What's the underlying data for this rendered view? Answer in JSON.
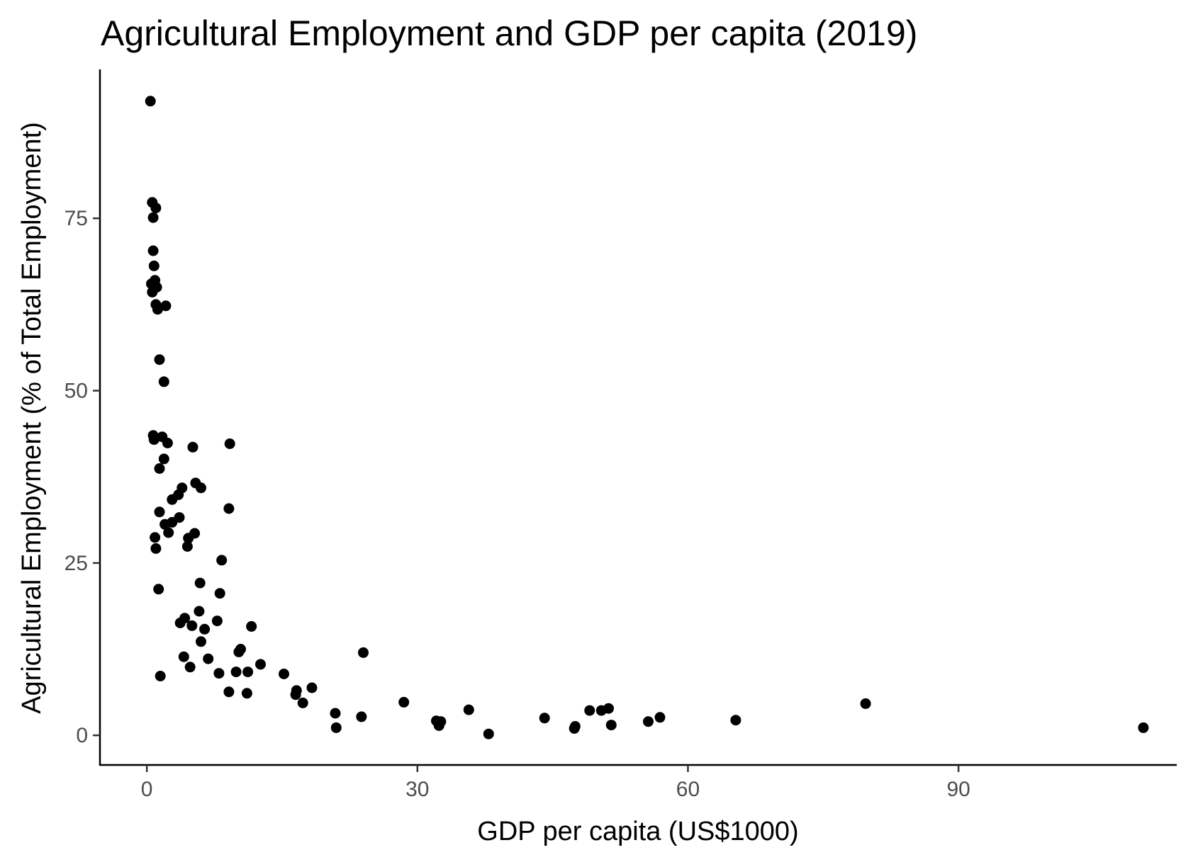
{
  "colors": {
    "background": "#ffffff",
    "point": "#000000",
    "axis": "#000000",
    "tick_label": "#4d4d4d"
  },
  "chart_data": {
    "type": "scatter",
    "title": "Agricultural Employment and GDP per capita (2019)",
    "xlabel": "GDP per capita (US$1000)",
    "ylabel": "Agricultural Employment (% of Total Employment)",
    "xlim": [
      -5.2,
      114.2
    ],
    "ylim": [
      -4.3,
      96.6
    ],
    "xticks": [
      0,
      30,
      60,
      90
    ],
    "yticks": [
      0,
      25,
      50,
      75
    ],
    "xtick_labels": [
      "0",
      "30",
      "60",
      "90"
    ],
    "ytick_labels": [
      "0",
      "25",
      "50",
      "75"
    ],
    "grid": false,
    "legend": "none",
    "series": [
      {
        "name": "countries",
        "points": [
          [
            0.4,
            92.0
          ],
          [
            0.6,
            77.3
          ],
          [
            1.0,
            76.5
          ],
          [
            0.7,
            75.1
          ],
          [
            0.7,
            70.3
          ],
          [
            0.8,
            68.1
          ],
          [
            0.9,
            66.0
          ],
          [
            0.5,
            65.5
          ],
          [
            1.1,
            65.0
          ],
          [
            0.6,
            64.3
          ],
          [
            1.0,
            62.5
          ],
          [
            1.2,
            61.8
          ],
          [
            2.1,
            62.3
          ],
          [
            1.4,
            54.5
          ],
          [
            1.9,
            51.3
          ],
          [
            0.7,
            43.5
          ],
          [
            0.8,
            42.9
          ],
          [
            1.7,
            43.3
          ],
          [
            2.3,
            42.4
          ],
          [
            5.1,
            41.8
          ],
          [
            9.2,
            42.3
          ],
          [
            1.9,
            40.1
          ],
          [
            1.4,
            38.7
          ],
          [
            3.9,
            35.9
          ],
          [
            6.0,
            35.9
          ],
          [
            5.4,
            36.6
          ],
          [
            3.5,
            34.9
          ],
          [
            2.8,
            34.2
          ],
          [
            9.1,
            32.9
          ],
          [
            1.4,
            32.4
          ],
          [
            3.6,
            31.6
          ],
          [
            2.8,
            30.9
          ],
          [
            2.0,
            30.6
          ],
          [
            2.4,
            29.4
          ],
          [
            5.3,
            29.3
          ],
          [
            4.6,
            28.6
          ],
          [
            0.9,
            28.7
          ],
          [
            4.5,
            27.4
          ],
          [
            1.0,
            27.1
          ],
          [
            8.3,
            25.4
          ],
          [
            5.9,
            22.1
          ],
          [
            1.3,
            21.2
          ],
          [
            8.1,
            20.6
          ],
          [
            5.8,
            18.0
          ],
          [
            4.2,
            17.0
          ],
          [
            7.8,
            16.6
          ],
          [
            3.7,
            16.3
          ],
          [
            5.0,
            15.9
          ],
          [
            11.6,
            15.8
          ],
          [
            6.4,
            15.4
          ],
          [
            6.0,
            13.6
          ],
          [
            10.4,
            12.5
          ],
          [
            10.2,
            12.1
          ],
          [
            24.0,
            12.0
          ],
          [
            4.1,
            11.4
          ],
          [
            6.8,
            11.1
          ],
          [
            12.6,
            10.3
          ],
          [
            4.8,
            9.9
          ],
          [
            8.0,
            9.0
          ],
          [
            9.9,
            9.2
          ],
          [
            11.2,
            9.2
          ],
          [
            15.2,
            8.9
          ],
          [
            1.5,
            8.6
          ],
          [
            18.3,
            6.9
          ],
          [
            16.6,
            6.5
          ],
          [
            9.1,
            6.3
          ],
          [
            11.1,
            6.1
          ],
          [
            16.5,
            5.9
          ],
          [
            28.5,
            4.8
          ],
          [
            17.3,
            4.7
          ],
          [
            79.7,
            4.6
          ],
          [
            35.7,
            3.7
          ],
          [
            49.1,
            3.6
          ],
          [
            51.2,
            3.9
          ],
          [
            50.4,
            3.6
          ],
          [
            20.9,
            3.2
          ],
          [
            23.8,
            2.7
          ],
          [
            56.9,
            2.6
          ],
          [
            44.1,
            2.5
          ],
          [
            65.3,
            2.2
          ],
          [
            55.6,
            2.0
          ],
          [
            32.1,
            2.1
          ],
          [
            32.6,
            2.0
          ],
          [
            32.4,
            1.4
          ],
          [
            51.5,
            1.5
          ],
          [
            47.5,
            1.3
          ],
          [
            21.0,
            1.1
          ],
          [
            47.4,
            1.0
          ],
          [
            110.5,
            1.1
          ],
          [
            37.9,
            0.2
          ]
        ]
      }
    ]
  }
}
